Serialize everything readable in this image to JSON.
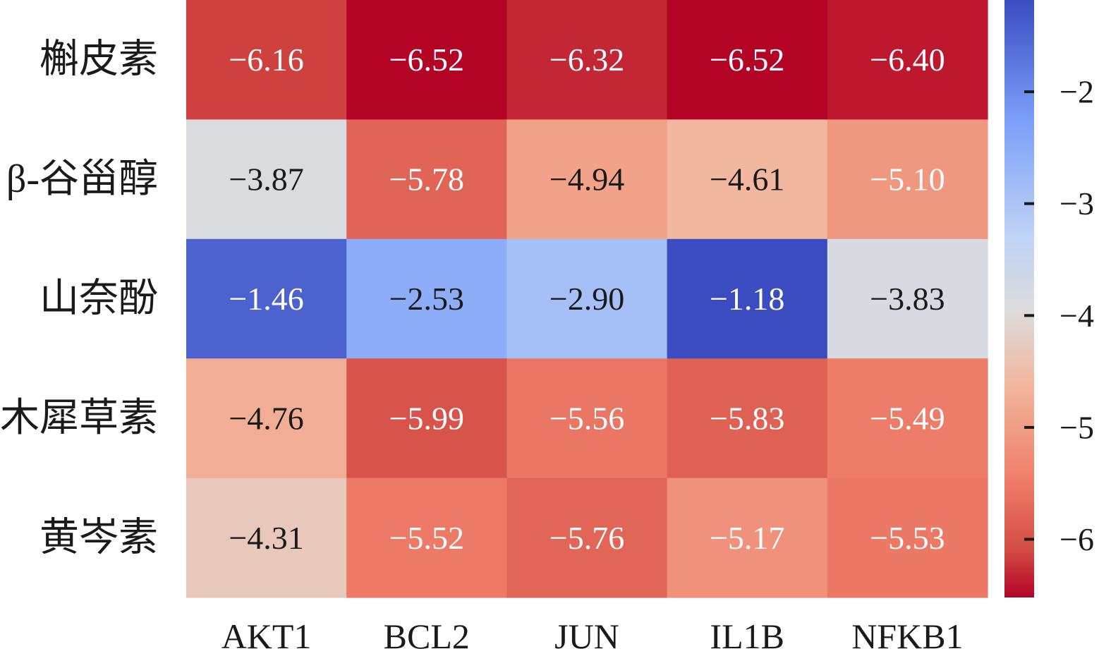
{
  "chart_data": {
    "type": "heatmap",
    "rows": [
      "槲皮素",
      "β-谷甾醇",
      "山奈酚",
      "木犀草素",
      "黄岑素"
    ],
    "columns": [
      "AKT1",
      "BCL2",
      "JUN",
      "IL1B",
      "NFKB1"
    ],
    "values": [
      [
        -6.16,
        -6.52,
        -6.32,
        -6.52,
        -6.4
      ],
      [
        -3.87,
        -5.78,
        -4.94,
        -4.61,
        -5.1
      ],
      [
        -1.46,
        -2.53,
        -2.9,
        -1.18,
        -3.83
      ],
      [
        -4.76,
        -5.99,
        -5.56,
        -5.83,
        -5.49
      ],
      [
        -4.31,
        -5.52,
        -5.76,
        -5.17,
        -5.53
      ]
    ],
    "value_labels": [
      [
        "−6.16",
        "−6.52",
        "−6.32",
        "−6.52",
        "−6.40"
      ],
      [
        "−3.87",
        "−5.78",
        "−4.94",
        "−4.61",
        "−5.10"
      ],
      [
        "−1.46",
        "−2.53",
        "−2.90",
        "−1.18",
        "−3.83"
      ],
      [
        "−4.76",
        "−5.99",
        "−5.56",
        "−5.83",
        "−5.49"
      ],
      [
        "−4.31",
        "−5.52",
        "−5.76",
        "−5.17",
        "−5.53"
      ]
    ],
    "colorbar": {
      "colormap": "coolwarm",
      "range": [
        -6.52,
        -1.18
      ],
      "ticks": [
        -2,
        -3,
        -4,
        -5,
        -6
      ],
      "tick_labels": [
        "−2",
        "−3",
        "−4",
        "−5",
        "−6"
      ]
    },
    "title": "",
    "xlabel": "",
    "ylabel": ""
  }
}
